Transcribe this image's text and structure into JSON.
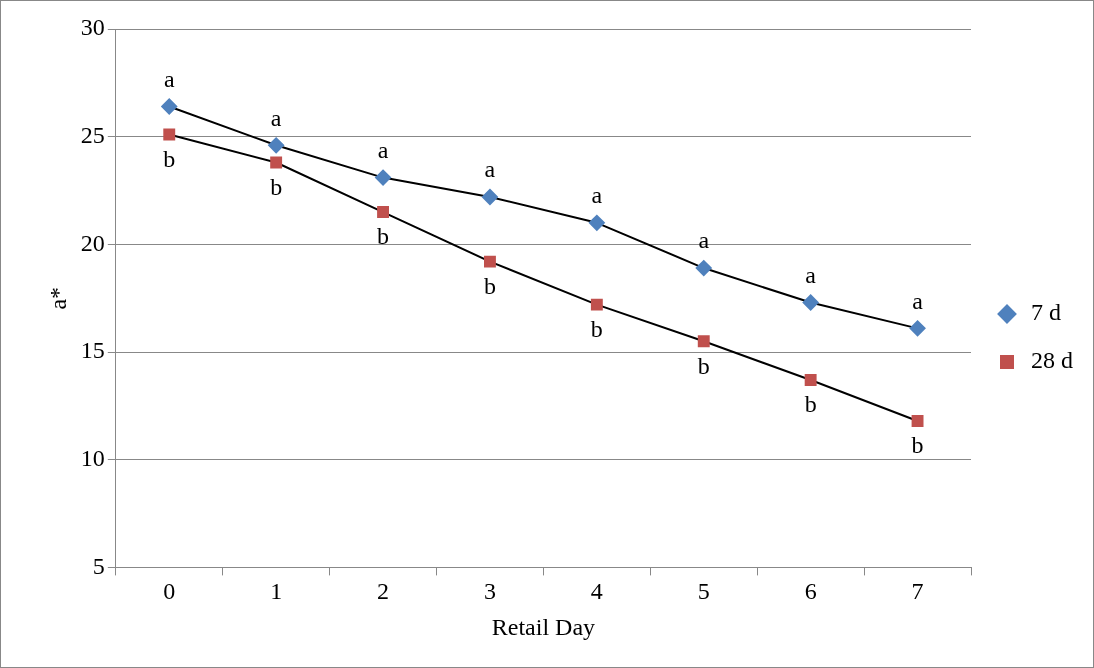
{
  "chart_data": {
    "type": "line",
    "xlabel": "Retail Day",
    "ylabel": "a*",
    "categories": [
      "0",
      "1",
      "2",
      "3",
      "4",
      "5",
      "6",
      "7"
    ],
    "ylim": [
      5,
      30
    ],
    "yticks": [
      5,
      10,
      15,
      20,
      25,
      30
    ],
    "grid": "y",
    "legend": "right",
    "series": [
      {
        "name": "7 d",
        "color": "#4f81bd",
        "marker": "diamond",
        "values": [
          26.4,
          24.6,
          23.1,
          22.2,
          21.0,
          18.9,
          17.3,
          16.1
        ]
      },
      {
        "name": "28 d",
        "color": "#c0504d",
        "marker": "square",
        "values": [
          25.1,
          23.8,
          21.5,
          19.2,
          17.2,
          15.5,
          13.7,
          11.8
        ]
      }
    ],
    "annotations": [
      {
        "text": "a",
        "x": "0",
        "y": 26.4
      },
      {
        "text": "a",
        "x": "1",
        "y": 24.6
      },
      {
        "text": "a",
        "x": "2",
        "y": 23.1
      },
      {
        "text": "a",
        "x": "3",
        "y": 22.2
      },
      {
        "text": "a",
        "x": "4",
        "y": 21.0
      },
      {
        "text": "a",
        "x": "5",
        "y": 18.9
      },
      {
        "text": "a",
        "x": "6",
        "y": 17.3
      },
      {
        "text": "a",
        "x": "7",
        "y": 16.1
      },
      {
        "text": "b",
        "x": "0",
        "y": 25.1
      },
      {
        "text": "b",
        "x": "1",
        "y": 23.8
      },
      {
        "text": "b",
        "x": "2",
        "y": 21.5
      },
      {
        "text": "b",
        "x": "3",
        "y": 19.2
      },
      {
        "text": "b",
        "x": "4",
        "y": 17.2
      },
      {
        "text": "b",
        "x": "5",
        "y": 15.5
      },
      {
        "text": "b",
        "x": "6",
        "y": 13.7
      },
      {
        "text": "b",
        "x": "7",
        "y": 11.8
      }
    ]
  }
}
